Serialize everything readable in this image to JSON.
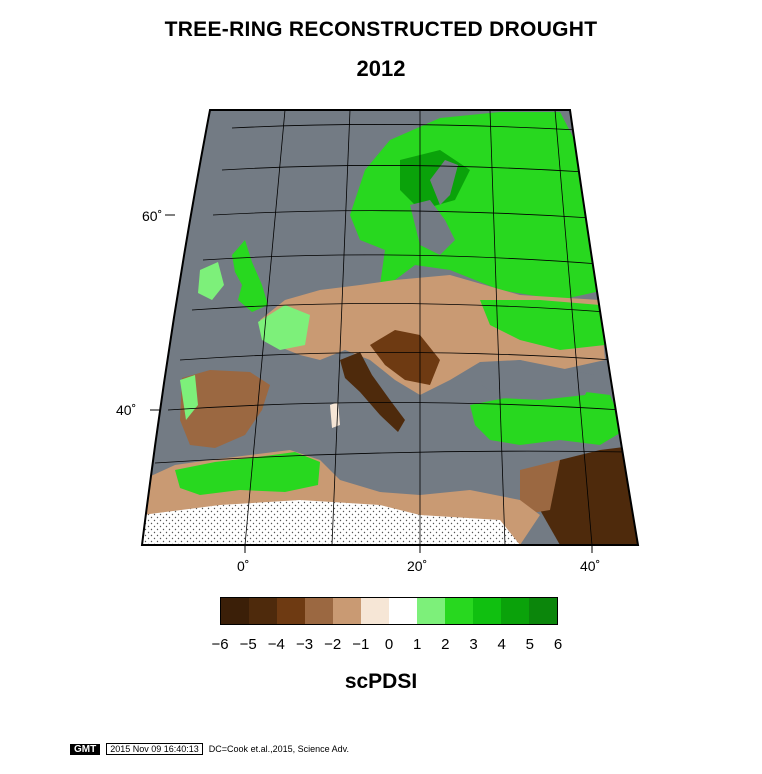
{
  "title": "TREE-RING RECONSTRUCTED DROUGHT",
  "year": "2012",
  "lat_labels": [
    "60˚",
    "40˚"
  ],
  "lon_labels": [
    "0˚",
    "20˚",
    "40˚"
  ],
  "colorbar": {
    "label": "scPDSI",
    "ticks": [
      "-6",
      "-5",
      "-4",
      "-3",
      "-2",
      "-1",
      "0",
      "1",
      "2",
      "3",
      "4",
      "5",
      "6"
    ],
    "colors": [
      "#3b1f08",
      "#4e2a0c",
      "#6e3a12",
      "#9b6841",
      "#c99a73",
      "#f6e6d6",
      "#ffffff",
      "#7df07a",
      "#28d81f",
      "#10c010",
      "#0aa20a",
      "#0b860b"
    ]
  },
  "colors": {
    "ocean": "#737b84",
    "land_drought": "#9b6841",
    "land_wet": "#28d81f",
    "no_data": "#ffffff"
  },
  "footer": {
    "logo": "GMT",
    "timestamp": "2015 Nov 09 16:40:13",
    "credit": "DC=Cook et.al.,2015, Science Adv."
  }
}
